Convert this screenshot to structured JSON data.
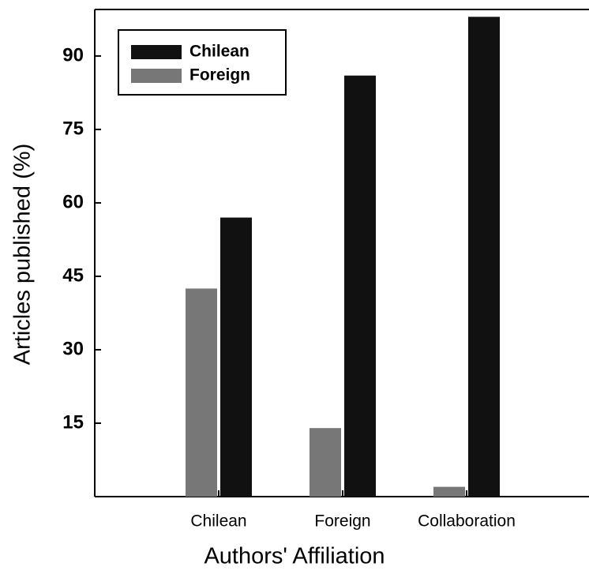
{
  "chart_data": {
    "type": "bar",
    "xlabel": "Authors' Affiliation",
    "ylabel": "Articles published (%)",
    "categories": [
      "Chilean",
      "Foreign",
      "Collaboration"
    ],
    "series": [
      {
        "name": "Chilean",
        "color": "#111111",
        "values": [
          57,
          86,
          98
        ]
      },
      {
        "name": "Foreign",
        "color": "#777777",
        "values": [
          42.5,
          14,
          2
        ]
      }
    ],
    "ylim": [
      0,
      99.5
    ],
    "yticks": [
      15,
      30,
      45,
      60,
      75,
      90
    ],
    "legend": "upper left"
  }
}
